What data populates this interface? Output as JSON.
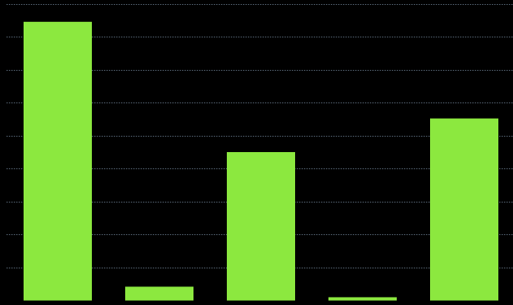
{
  "colors": {
    "background": "#000000",
    "bar": "#8ce83f",
    "grid": "#5a6a7a"
  },
  "chart_data": {
    "type": "bar",
    "title": "",
    "xlabel": "",
    "ylabel": "",
    "grid": true,
    "ylim": [
      0,
      9
    ],
    "categories": [
      "",
      "",
      "",
      "",
      ""
    ],
    "values": [
      8.45,
      0.42,
      4.5,
      0.1,
      5.52
    ]
  }
}
